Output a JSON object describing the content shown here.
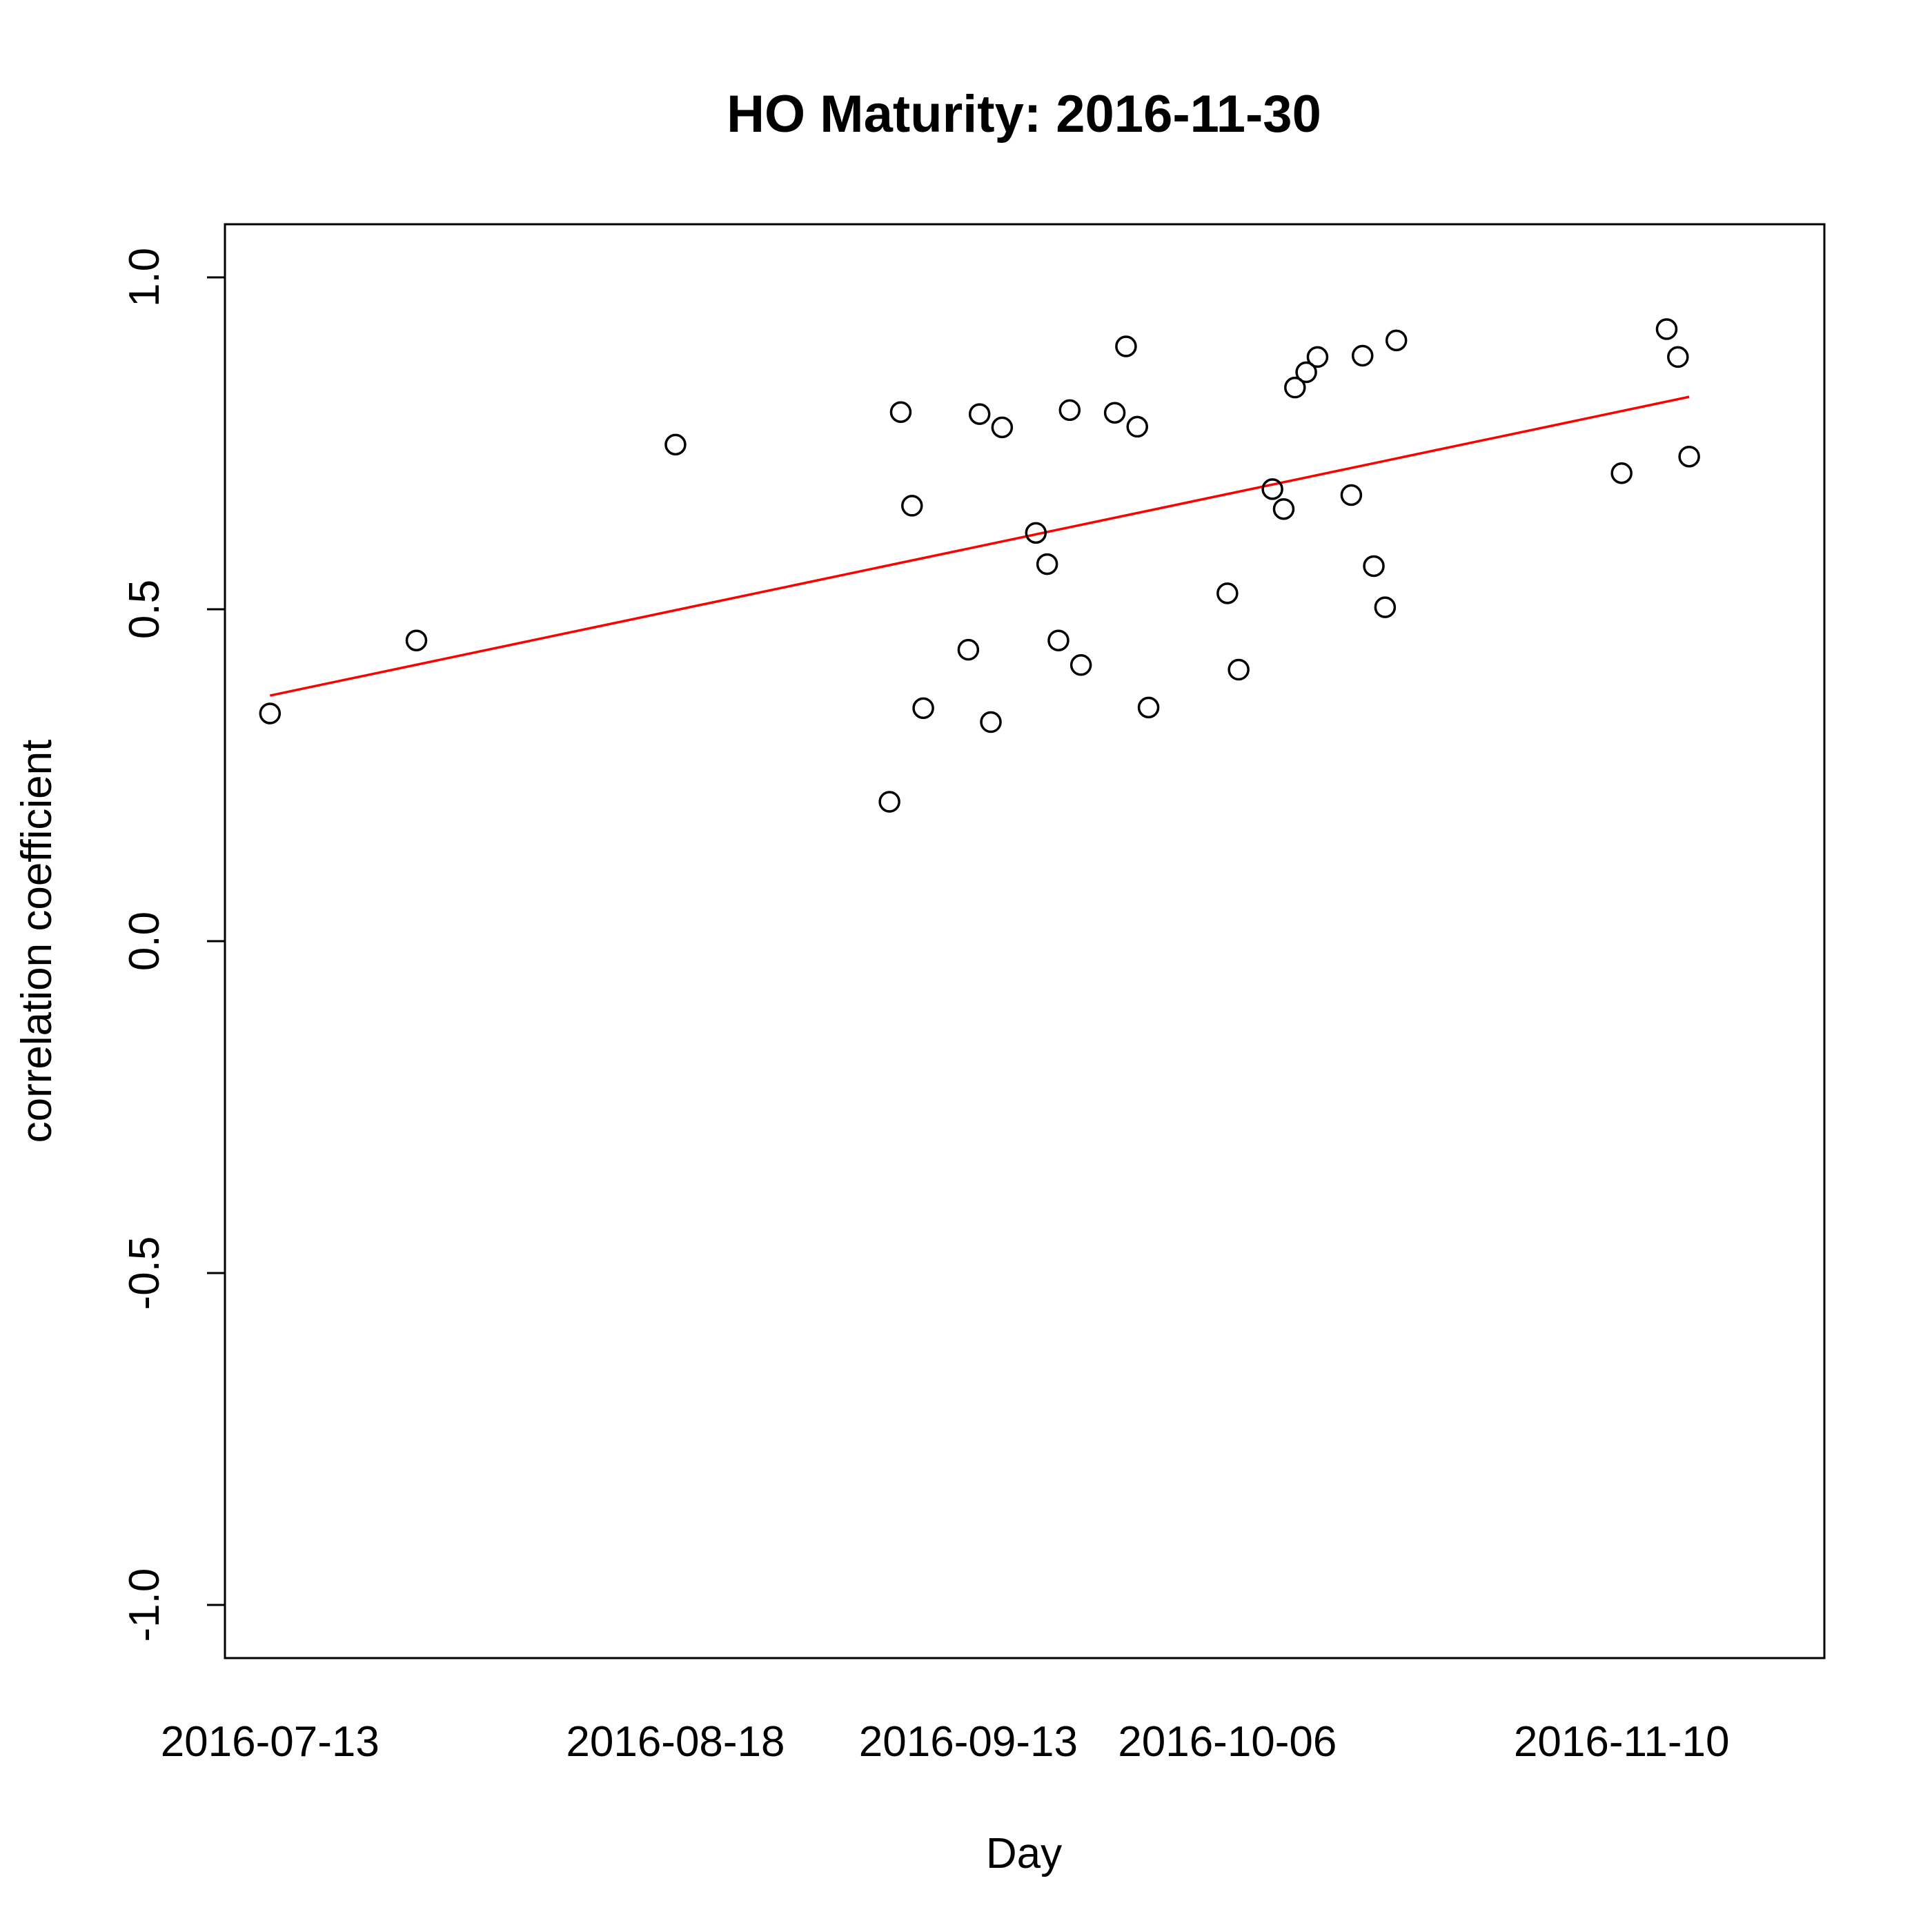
{
  "chart_data": {
    "type": "scatter",
    "title": "HO Maturity: 2016-11-30",
    "xlabel": "Day",
    "ylabel": "correlation coefficient",
    "ylim": [
      -1.08,
      1.08
    ],
    "xlim": [
      "2016-07-09",
      "2016-11-28"
    ],
    "y_ticks": [
      -1.0,
      -0.5,
      0.0,
      0.5,
      1.0
    ],
    "y_tick_labels": [
      "-1.0",
      "-0.5",
      "0.0",
      "0.5",
      "1.0"
    ],
    "x_ticks": [
      "2016-07-13",
      "2016-08-18",
      "2016-09-13",
      "2016-10-06",
      "2016-11-10"
    ],
    "x_tick_labels": [
      "2016-07-13",
      "2016-08-18",
      "2016-09-13",
      "2016-10-06",
      "2016-11-10"
    ],
    "grid": false,
    "colors": {
      "points": "#000000",
      "trend_line": "#ff0000"
    },
    "points": [
      {
        "x": "2016-07-13",
        "y": 0.343
      },
      {
        "x": "2016-07-26",
        "y": 0.453
      },
      {
        "x": "2016-08-18",
        "y": 0.748
      },
      {
        "x": "2016-09-06",
        "y": 0.21
      },
      {
        "x": "2016-09-07",
        "y": 0.797
      },
      {
        "x": "2016-09-08",
        "y": 0.656
      },
      {
        "x": "2016-09-09",
        "y": 0.351
      },
      {
        "x": "2016-09-13",
        "y": 0.439
      },
      {
        "x": "2016-09-14",
        "y": 0.794
      },
      {
        "x": "2016-09-15",
        "y": 0.33
      },
      {
        "x": "2016-09-16",
        "y": 0.774
      },
      {
        "x": "2016-09-19",
        "y": 0.615
      },
      {
        "x": "2016-09-20",
        "y": 0.568
      },
      {
        "x": "2016-09-21",
        "y": 0.453
      },
      {
        "x": "2016-09-22",
        "y": 0.8
      },
      {
        "x": "2016-09-23",
        "y": 0.416
      },
      {
        "x": "2016-09-26",
        "y": 0.796
      },
      {
        "x": "2016-09-27",
        "y": 0.896
      },
      {
        "x": "2016-09-28",
        "y": 0.775
      },
      {
        "x": "2016-09-29",
        "y": 0.352
      },
      {
        "x": "2016-10-06",
        "y": 0.524
      },
      {
        "x": "2016-10-07",
        "y": 0.409
      },
      {
        "x": "2016-10-10",
        "y": 0.681
      },
      {
        "x": "2016-10-11",
        "y": 0.651
      },
      {
        "x": "2016-10-12",
        "y": 0.834
      },
      {
        "x": "2016-10-13",
        "y": 0.857
      },
      {
        "x": "2016-10-14",
        "y": 0.88
      },
      {
        "x": "2016-10-17",
        "y": 0.672
      },
      {
        "x": "2016-10-18",
        "y": 0.882
      },
      {
        "x": "2016-10-19",
        "y": 0.565
      },
      {
        "x": "2016-10-20",
        "y": 0.503
      },
      {
        "x": "2016-10-21",
        "y": 0.905
      },
      {
        "x": "2016-11-10",
        "y": 0.705
      },
      {
        "x": "2016-11-14",
        "y": 0.922
      },
      {
        "x": "2016-11-15",
        "y": 0.88
      },
      {
        "x": "2016-11-16",
        "y": 0.73
      }
    ],
    "trend_line": {
      "from": {
        "x": "2016-07-13",
        "y": 0.37
      },
      "to": {
        "x": "2016-11-16",
        "y": 0.82
      }
    }
  }
}
